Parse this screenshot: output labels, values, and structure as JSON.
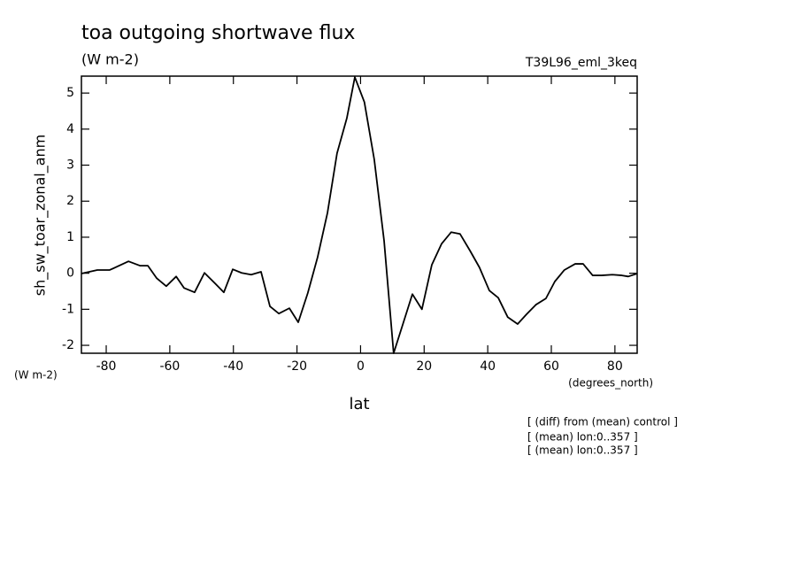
{
  "chart_data": {
    "type": "line",
    "title": "toa outgoing shortwave flux",
    "subtitle": "(W m-2)",
    "dataset": "T39L96_eml_3keq",
    "y_label": "sh_sw_toar_zonal_anm",
    "y_units": "(W m-2)",
    "x_label": "lat",
    "x_units": "(degrees_north)",
    "notes": [
      "[ (diff) from (mean) control ]",
      "[ (mean) lon:0..357 ]",
      "[ (mean) lon:0..357 ]"
    ],
    "x": [
      -87.8,
      -82.8,
      -78.9,
      -73.0,
      -69.4,
      -66.9,
      -64.1,
      -61.1,
      -58.0,
      -55.5,
      -52.2,
      -49.1,
      -45.8,
      -43.0,
      -40.2,
      -37.4,
      -34.4,
      -31.3,
      -28.5,
      -25.7,
      -22.4,
      -19.6,
      -16.6,
      -13.5,
      -10.4,
      -7.4,
      -4.3,
      -1.8,
      1.2,
      4.3,
      7.4,
      10.4,
      13.5,
      16.3,
      19.3,
      22.4,
      25.5,
      28.5,
      31.3,
      34.4,
      37.4,
      40.5,
      43.3,
      46.3,
      49.4,
      52.2,
      55.2,
      58.3,
      61.1,
      64.1,
      67.5,
      70.0,
      73.0,
      75.8,
      79.2,
      82.2,
      84.2,
      87.0
    ],
    "series": [
      {
        "name": "sh_sw_toar_zonal_anm",
        "color": "#000000",
        "values": [
          -0.01,
          0.09,
          0.09,
          0.33,
          0.21,
          0.21,
          -0.14,
          -0.36,
          -0.09,
          -0.41,
          -0.53,
          0.01,
          -0.28,
          -0.53,
          0.11,
          0.01,
          -0.04,
          0.04,
          -0.92,
          -1.12,
          -0.97,
          -1.36,
          -0.55,
          0.45,
          1.68,
          3.33,
          4.31,
          5.44,
          4.75,
          3.16,
          0.9,
          -2.22,
          -1.36,
          -0.58,
          -1.0,
          0.23,
          0.82,
          1.14,
          1.09,
          0.63,
          0.16,
          -0.48,
          -0.68,
          -1.22,
          -1.41,
          -1.14,
          -0.87,
          -0.7,
          -0.23,
          0.09,
          0.26,
          0.26,
          -0.06,
          -0.06,
          -0.04,
          -0.06,
          -0.09,
          -0.01
        ]
      }
    ],
    "xlim": [
      -87.8,
      87.0
    ],
    "ylim": [
      -2.22,
      5.47
    ],
    "xticks": [
      -80,
      -60,
      -40,
      -20,
      0,
      20,
      40,
      60,
      80
    ],
    "yticks": [
      -2,
      -1,
      0,
      1,
      2,
      3,
      4,
      5
    ],
    "grid": false
  }
}
